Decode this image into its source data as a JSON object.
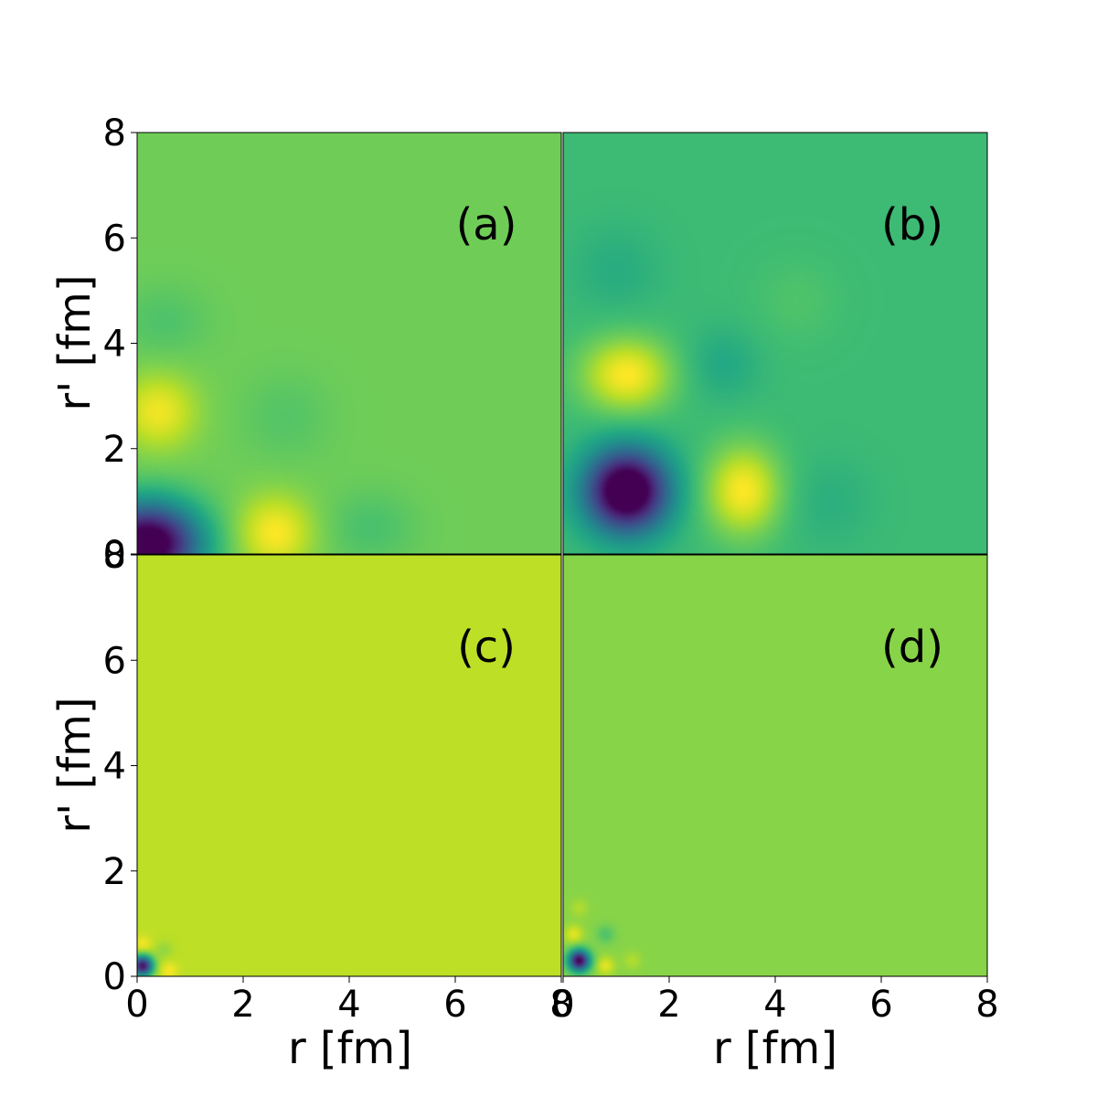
{
  "chart_data": {
    "type": "heatmap",
    "layout": "2x2 grid, shared axes",
    "colormap": "viridis",
    "colorbar": false,
    "xlabel": "r [fm]",
    "ylabel": "r' [fm]",
    "xlim": [
      0,
      8
    ],
    "ylim": [
      0,
      8
    ],
    "x_ticks": [
      "0",
      "2",
      "4",
      "6",
      "8"
    ],
    "y_ticks": [
      "0",
      "2",
      "4",
      "6",
      "8"
    ],
    "panels": [
      {
        "label": "(a)",
        "background_level": 0.78,
        "features": [
          {
            "r": 0.2,
            "rp": 0.2,
            "sr": 0.7,
            "srp": 0.55,
            "amp": -0.9,
            "desc": "deep minimum near origin"
          },
          {
            "r": 2.6,
            "rp": 0.4,
            "sr": 0.5,
            "srp": 0.5,
            "amp": 0.22,
            "desc": "maximum"
          },
          {
            "r": 0.4,
            "rp": 2.7,
            "sr": 0.5,
            "srp": 0.5,
            "amp": 0.2,
            "desc": "maximum"
          },
          {
            "r": 4.4,
            "rp": 0.5,
            "sr": 0.6,
            "srp": 0.5,
            "amp": -0.07,
            "desc": "weak minimum"
          },
          {
            "r": 0.5,
            "rp": 4.4,
            "sr": 0.6,
            "srp": 0.5,
            "amp": -0.06,
            "desc": "weak minimum"
          },
          {
            "r": 2.8,
            "rp": 2.6,
            "sr": 0.6,
            "srp": 0.6,
            "amp": -0.05,
            "desc": "weak minimum"
          }
        ]
      },
      {
        "label": "(b)",
        "background_level": 0.68,
        "features": [
          {
            "r": 1.2,
            "rp": 1.2,
            "sr": 0.55,
            "srp": 0.55,
            "amp": -0.86,
            "desc": "deep minimum"
          },
          {
            "r": 3.4,
            "rp": 1.2,
            "sr": 0.5,
            "srp": 0.6,
            "amp": 0.32,
            "desc": "maximum"
          },
          {
            "r": 1.2,
            "rp": 3.4,
            "sr": 0.6,
            "srp": 0.5,
            "amp": 0.32,
            "desc": "maximum"
          },
          {
            "r": 3.0,
            "rp": 3.6,
            "sr": 0.5,
            "srp": 0.5,
            "amp": -0.08,
            "desc": "weak minimum"
          },
          {
            "r": 5.0,
            "rp": 1.0,
            "sr": 0.6,
            "srp": 0.6,
            "amp": -0.05,
            "desc": "weak minimum"
          },
          {
            "r": 1.0,
            "rp": 5.4,
            "sr": 0.6,
            "srp": 0.6,
            "amp": -0.06,
            "desc": "weak minimum"
          },
          {
            "r": 4.4,
            "rp": 4.8,
            "sr": 0.6,
            "srp": 0.6,
            "amp": 0.04,
            "desc": "weak maximum"
          }
        ]
      },
      {
        "label": "(c)",
        "background_level": 0.9,
        "features": [
          {
            "r": 0.1,
            "rp": 0.2,
            "sr": 0.14,
            "srp": 0.14,
            "amp": -0.85,
            "desc": "sharp minimum at origin"
          },
          {
            "r": 0.6,
            "rp": 0.1,
            "sr": 0.12,
            "srp": 0.12,
            "amp": 0.09,
            "desc": "small maximum"
          },
          {
            "r": 0.1,
            "rp": 0.6,
            "sr": 0.12,
            "srp": 0.12,
            "amp": 0.09,
            "desc": "small maximum"
          },
          {
            "r": 0.5,
            "rp": 0.5,
            "sr": 0.12,
            "srp": 0.12,
            "amp": -0.06,
            "desc": "small minimum"
          }
        ]
      },
      {
        "label": "(d)",
        "background_level": 0.82,
        "features": [
          {
            "r": 0.3,
            "rp": 0.3,
            "sr": 0.14,
            "srp": 0.14,
            "amp": -0.82,
            "desc": "sharp minimum near origin"
          },
          {
            "r": 0.8,
            "rp": 0.2,
            "sr": 0.12,
            "srp": 0.12,
            "amp": 0.14,
            "desc": "small maximum"
          },
          {
            "r": 0.2,
            "rp": 0.8,
            "sr": 0.12,
            "srp": 0.12,
            "amp": 0.14,
            "desc": "small maximum"
          },
          {
            "r": 0.8,
            "rp": 0.8,
            "sr": 0.12,
            "srp": 0.12,
            "amp": -0.1,
            "desc": "small minimum"
          },
          {
            "r": 1.3,
            "rp": 0.3,
            "sr": 0.12,
            "srp": 0.12,
            "amp": 0.06,
            "desc": "small maximum"
          },
          {
            "r": 0.3,
            "rp": 1.3,
            "sr": 0.12,
            "srp": 0.12,
            "amp": 0.06,
            "desc": "small maximum"
          }
        ]
      }
    ]
  }
}
